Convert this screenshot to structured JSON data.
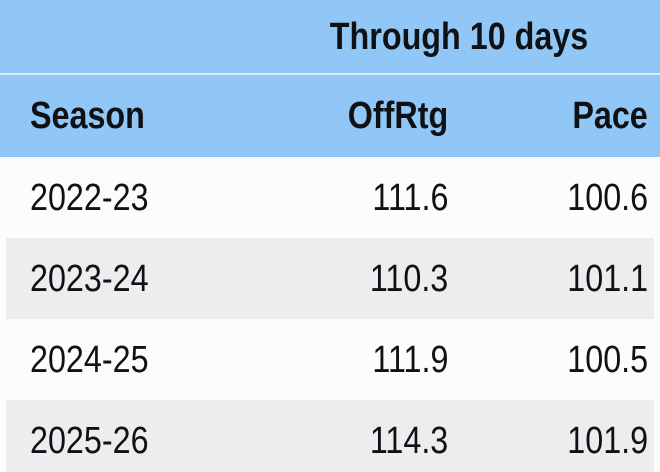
{
  "chart_data": {
    "type": "table",
    "span_header": "Through 10 days",
    "columns": [
      "Season",
      "OffRtg",
      "Pace"
    ],
    "rows": [
      [
        "2022-23",
        "111.6",
        "100.6"
      ],
      [
        "2023-24",
        "110.3",
        "101.1"
      ],
      [
        "2024-25",
        "111.9",
        "100.5"
      ],
      [
        "2025-26",
        "114.3",
        "101.9"
      ]
    ],
    "layout_hints": {
      "zebra_striping": true,
      "first_column_align": "left",
      "numeric_columns_align": "right",
      "span_header_covers": [
        "OffRtg",
        "Pace"
      ]
    }
  },
  "colors": {
    "header_blue": "#91C7F6",
    "header_separator_line": "rgba(255,255,255,0.65)",
    "row_white": "#FCFCFD",
    "row_stripe_gray": "#EDEDEF",
    "text_dark": "#101114"
  }
}
